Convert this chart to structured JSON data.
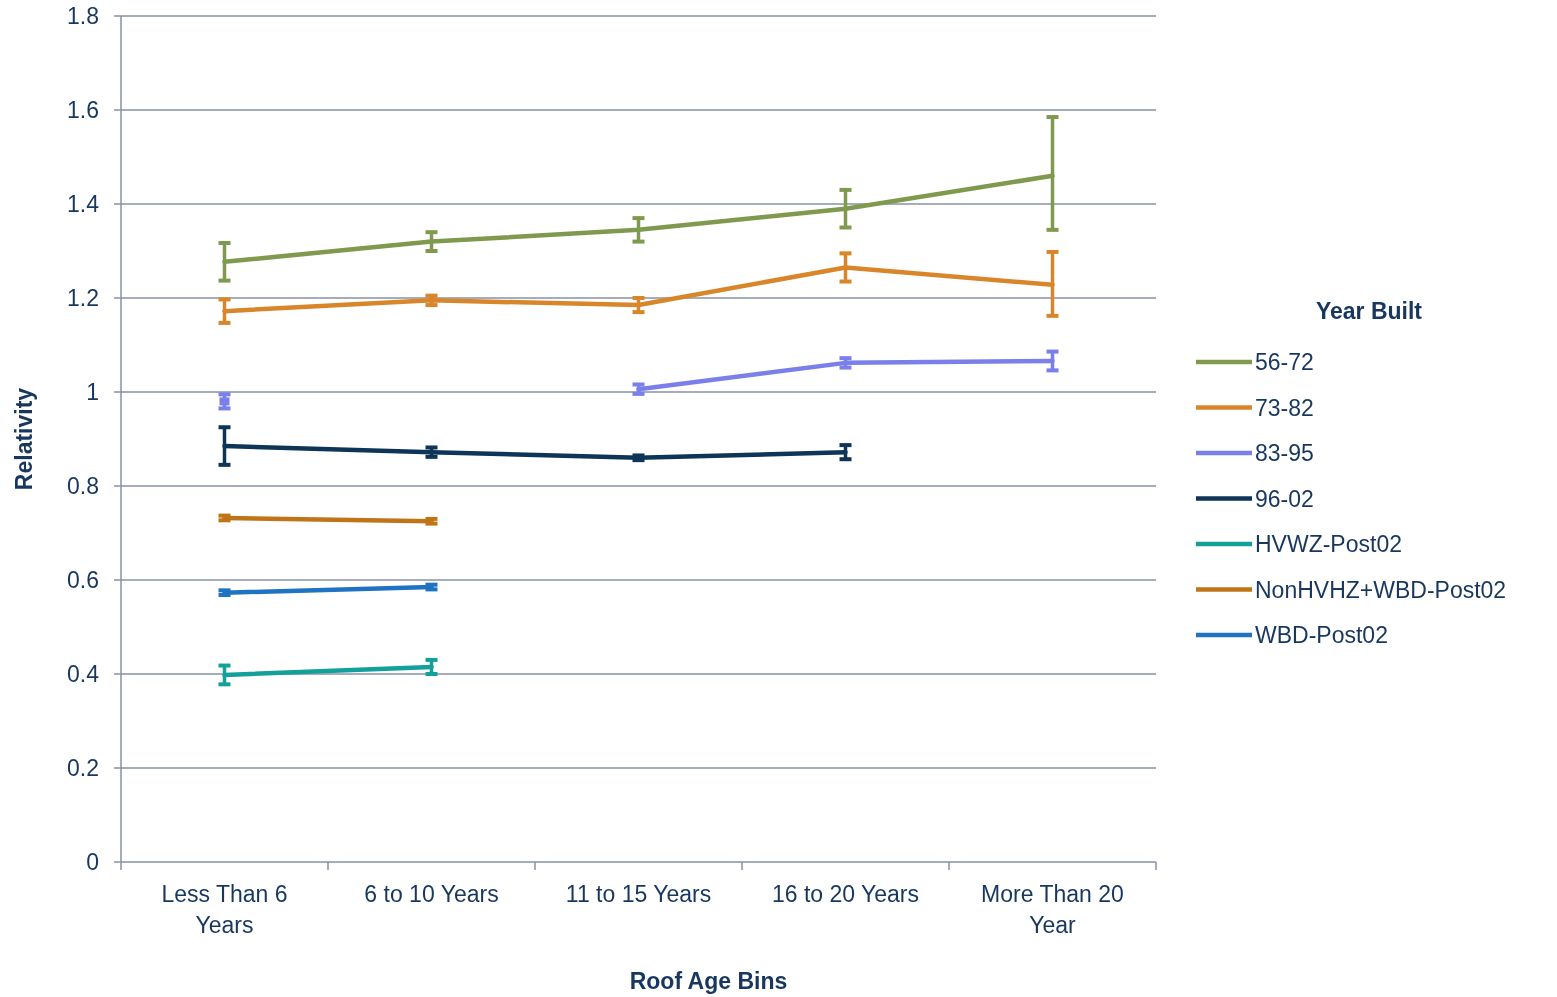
{
  "chart_data": {
    "type": "line",
    "xlabel": "Roof Age Bins",
    "ylabel": "Relativity",
    "legend_title": "Year Built",
    "legend": "right",
    "grid": "y",
    "categories": [
      "Less Than 6 Years",
      "6 to 10 Years",
      "11 to 15 Years",
      "16 to 20 Years",
      "More Than 20 Year"
    ],
    "ylim": [
      0,
      1.8
    ],
    "yticks": [
      0,
      0.2,
      0.4,
      0.6,
      0.8,
      1,
      1.2,
      1.4,
      1.6,
      1.8
    ],
    "series": [
      {
        "name": "56-72",
        "color": "#7f9a4e",
        "values": [
          1.277,
          1.32,
          1.345,
          1.39,
          1.46
        ],
        "errors": [
          0.04,
          0.02,
          0.025,
          0.04,
          [
            1.345,
            1.585
          ]
        ]
      },
      {
        "name": "73-82",
        "color": "#d9862a",
        "values": [
          1.172,
          1.195,
          1.185,
          1.265,
          1.228
        ],
        "errors": [
          0.025,
          0.01,
          0.015,
          0.03,
          [
            1.162,
            1.298
          ]
        ]
      },
      {
        "name": "83-95",
        "color": "#7b7fea",
        "values": [
          0.98,
          null,
          1.006,
          1.062,
          1.066
        ],
        "errors": [
          0.015,
          null,
          0.01,
          0.01,
          0.02
        ]
      },
      {
        "name": "96-02",
        "color": "#0c3558",
        "values": [
          0.885,
          0.872,
          0.86,
          0.872,
          null
        ],
        "errors": [
          0.04,
          0.01,
          0.005,
          0.015,
          null
        ]
      },
      {
        "name": "HVWZ-Post02",
        "color": "#14a09a",
        "values": [
          0.398,
          0.415,
          null,
          null,
          null
        ],
        "errors": [
          0.02,
          0.015,
          null,
          null,
          null
        ]
      },
      {
        "name": "NonHVHZ+WBD-Post02",
        "color": "#c07418",
        "values": [
          0.732,
          0.725,
          null,
          null,
          null
        ],
        "errors": [
          0.005,
          0.005,
          null,
          null,
          null
        ]
      },
      {
        "name": "WBD-Post02",
        "color": "#1f73c2",
        "values": [
          0.573,
          0.585,
          null,
          null,
          null
        ],
        "errors": [
          0.005,
          0.005,
          null,
          null,
          null
        ]
      }
    ]
  }
}
